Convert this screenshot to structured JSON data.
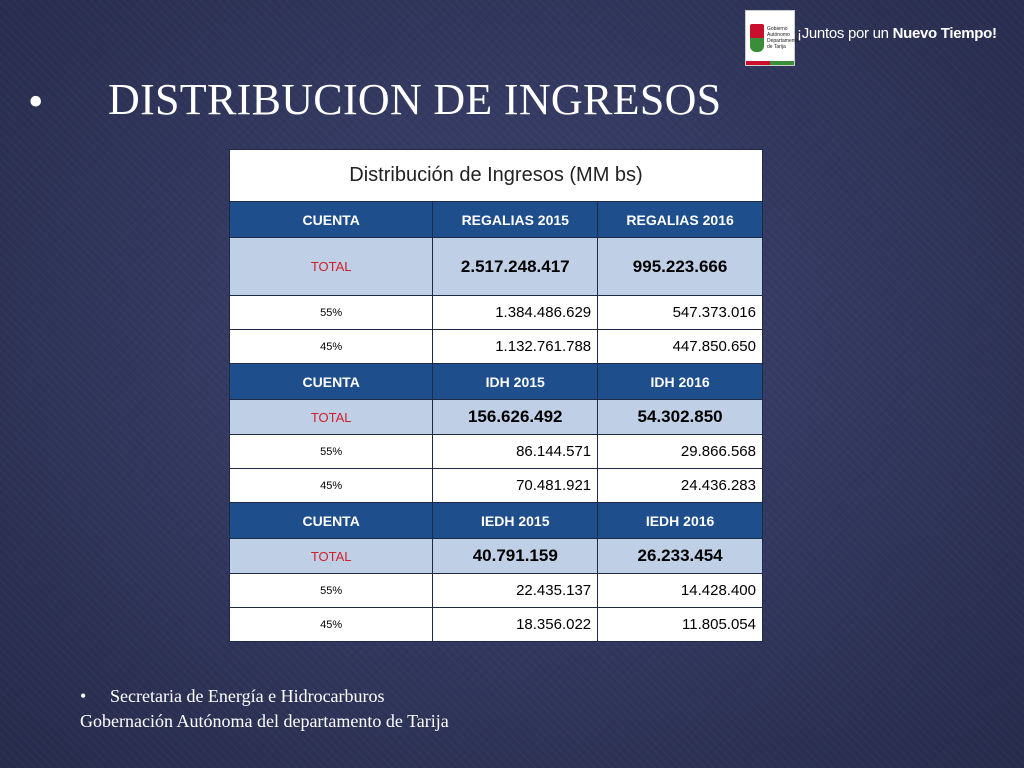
{
  "header": {
    "logo_text": "Gobierno Autónomo Departamental de Tarija",
    "slogan_prefix": "¡Juntos por un ",
    "slogan_bold": "Nuevo Tiempo!",
    "title_bullet": "•",
    "title": "DISTRIBUCION DE INGRESOS"
  },
  "table": {
    "caption": "Distribución de Ingresos (MM bs)",
    "sections": [
      {
        "headers": [
          "CUENTA",
          "REGALIAS 2015",
          "REGALIAS 2016"
        ],
        "total": {
          "label": "TOTAL",
          "v1": "2.517.248.417",
          "v2": "995.223.666"
        },
        "rows": [
          {
            "label": "55%",
            "v1": "1.384.486.629",
            "v2": "547.373.016"
          },
          {
            "label": "45%",
            "v1": "1.132.761.788",
            "v2": "447.850.650"
          }
        ]
      },
      {
        "headers": [
          "CUENTA",
          "IDH 2015",
          "IDH 2016"
        ],
        "total": {
          "label": "TOTAL",
          "v1": "156.626.492",
          "v2": "54.302.850"
        },
        "rows": [
          {
            "label": "55%",
            "v1": "86.144.571",
            "v2": "29.866.568"
          },
          {
            "label": "45%",
            "v1": "70.481.921",
            "v2": "24.436.283"
          }
        ]
      },
      {
        "headers": [
          "CUENTA",
          "IEDH 2015",
          "IEDH 2016"
        ],
        "total": {
          "label": "TOTAL",
          "v1": "40.791.159",
          "v2": "26.233.454"
        },
        "rows": [
          {
            "label": "55%",
            "v1": "22.435.137",
            "v2": "14.428.400"
          },
          {
            "label": "45%",
            "v1": "18.356.022",
            "v2": "11.805.054"
          }
        ]
      }
    ]
  },
  "footer": {
    "bullet": "•",
    "line1": "Secretaria de Energía e Hidrocarburos",
    "line2": "Gobernación Autónoma del departamento de Tarija"
  },
  "colors": {
    "background": "#30365c",
    "header_row": "#1f4e8c",
    "total_row": "#bfcfe6",
    "total_label": "#d0202a"
  }
}
